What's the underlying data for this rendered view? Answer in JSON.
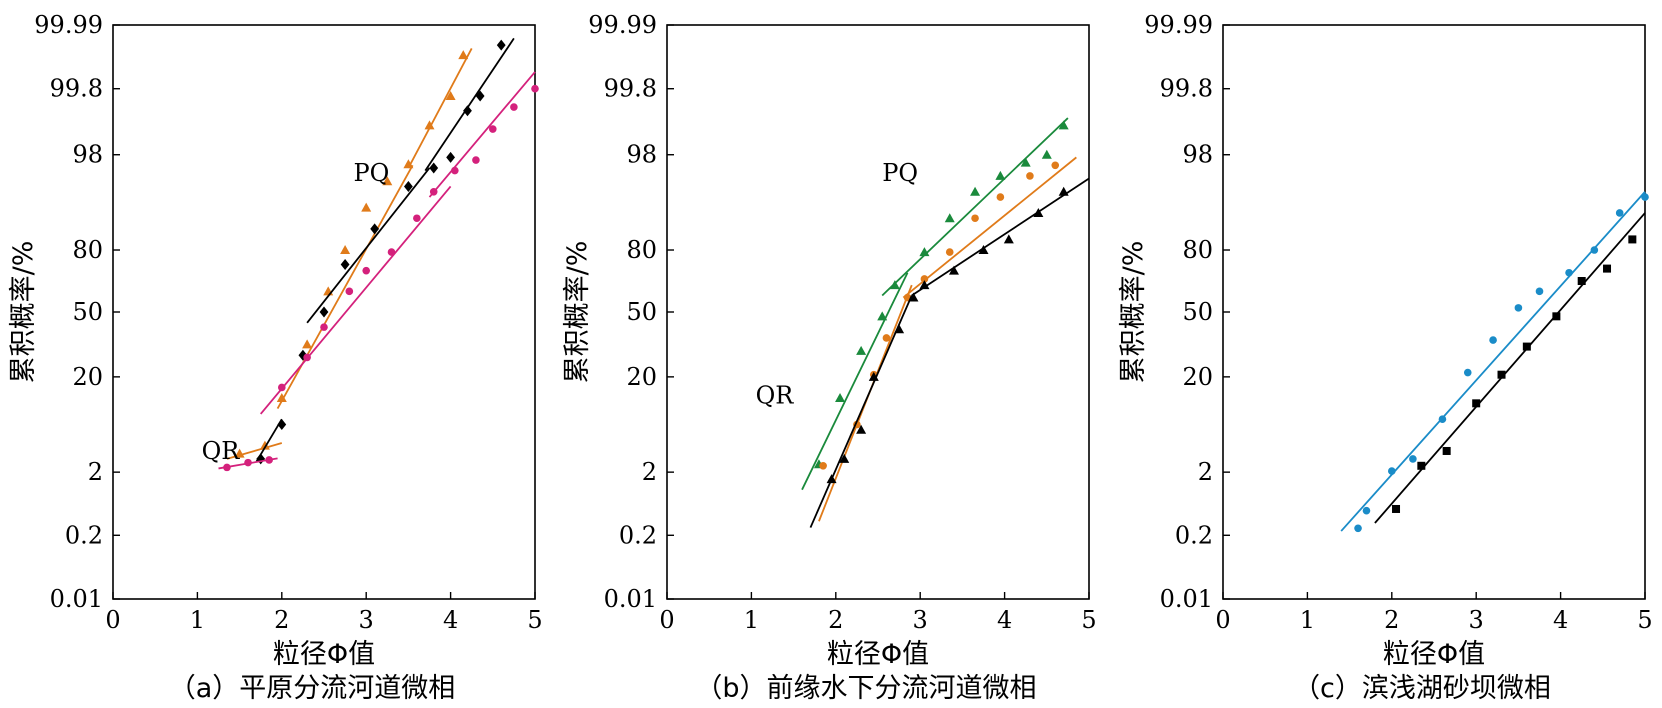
{
  "chart_data": [
    {
      "type": "scatter",
      "subplot": "a",
      "caption": "（a）平原分流河道微相",
      "xlabel": "粒径Φ值",
      "ylabel": "累积概率/%",
      "xlim": [
        0,
        5
      ],
      "xticks": [
        "0",
        "1",
        "2",
        "3",
        "4",
        "5"
      ],
      "yscale": "probability",
      "yticks": [
        "0.01",
        "0.2",
        "2",
        "20",
        "50",
        "80",
        "98",
        "99.8",
        "99.99"
      ],
      "annotations": [
        {
          "text": "PQ",
          "x": 2.85,
          "y": 93
        },
        {
          "text": "QR",
          "x": 1.05,
          "y": 4.5
        }
      ],
      "series": [
        {
          "color": "#E07B1A",
          "marker": "triangle",
          "points": [
            [
              1.5,
              5.5
            ],
            [
              1.8,
              7
            ],
            [
              2.0,
              16
            ],
            [
              2.3,
              35
            ],
            [
              2.55,
              60
            ],
            [
              2.75,
              80
            ],
            [
              3.0,
              88
            ],
            [
              3.25,
              93
            ],
            [
              3.5,
              96.2
            ],
            [
              3.75,
              98.8
            ],
            [
              4.0,
              99.6
            ],
            [
              4.15,
              99.9
            ]
          ],
          "lines": [
            [
              [
                1.35,
                4.5
              ],
              [
                2.0,
                7.5
              ]
            ],
            [
              [
                1.95,
                14
              ],
              [
                3.55,
                96
              ]
            ],
            [
              [
                3.5,
                95.5
              ],
              [
                4.25,
                99.92
              ]
            ]
          ]
        },
        {
          "color": "#000000",
          "marker": "diamond",
          "points": [
            [
              1.75,
              4.5
            ],
            [
              2.0,
              11
            ],
            [
              2.25,
              30
            ],
            [
              2.5,
              50
            ],
            [
              2.75,
              73
            ],
            [
              3.1,
              84
            ],
            [
              3.5,
              92
            ],
            [
              3.8,
              95.5
            ],
            [
              4.0,
              97.5
            ],
            [
              4.2,
              99.2
            ],
            [
              4.35,
              99.6
            ],
            [
              4.6,
              99.93
            ]
          ],
          "lines": [
            [
              [
                1.7,
                4
              ],
              [
                2.0,
                12
              ]
            ],
            [
              [
                2.3,
                45
              ],
              [
                3.75,
                95.5
              ]
            ],
            [
              [
                3.7,
                95
              ],
              [
                4.75,
                99.95
              ]
            ]
          ]
        },
        {
          "color": "#D4217C",
          "marker": "circle",
          "points": [
            [
              1.35,
              2.9
            ],
            [
              1.6,
              3.8
            ],
            [
              1.85,
              4.3
            ],
            [
              2.0,
              18
            ],
            [
              2.3,
              29
            ],
            [
              2.5,
              43
            ],
            [
              2.8,
              60
            ],
            [
              3.0,
              70
            ],
            [
              3.3,
              79
            ],
            [
              3.6,
              86
            ],
            [
              3.8,
              91
            ],
            [
              4.05,
              95
            ],
            [
              4.3,
              97
            ],
            [
              4.5,
              98.7
            ],
            [
              4.75,
              99.3
            ],
            [
              5.0,
              99.8
            ]
          ],
          "lines": [
            [
              [
                1.25,
                2.7
              ],
              [
                1.95,
                4.6
              ]
            ],
            [
              [
                1.75,
                13
              ],
              [
                4.0,
                92
              ]
            ],
            [
              [
                3.75,
                90
              ],
              [
                5.0,
                99.85
              ]
            ]
          ]
        }
      ]
    },
    {
      "type": "scatter",
      "subplot": "b",
      "caption": "（b）前缘水下分流河道微相",
      "xlabel": "粒径Φ值",
      "ylabel": "累积概率/%",
      "xlim": [
        0,
        5
      ],
      "xticks": [
        "0",
        "1",
        "2",
        "3",
        "4",
        "5"
      ],
      "yscale": "probability",
      "yticks": [
        "0.01",
        "0.2",
        "2",
        "20",
        "50",
        "80",
        "98",
        "99.8",
        "99.99"
      ],
      "annotations": [
        {
          "text": "PQ",
          "x": 2.55,
          "y": 93
        },
        {
          "text": "QR",
          "x": 1.05,
          "y": 15
        }
      ],
      "series": [
        {
          "color": "#1A8A3C",
          "marker": "triangle",
          "points": [
            [
              1.8,
              3.5
            ],
            [
              2.05,
              16
            ],
            [
              2.3,
              32
            ],
            [
              2.55,
              48
            ],
            [
              2.7,
              63
            ],
            [
              3.05,
              79
            ],
            [
              3.35,
              86
            ],
            [
              3.65,
              91
            ],
            [
              3.95,
              94
            ],
            [
              4.25,
              96.5
            ],
            [
              4.5,
              98
            ],
            [
              4.7,
              98.8
            ]
          ],
          "lines": [
            [
              [
                1.6,
                1.5
              ],
              [
                2.85,
                69
              ]
            ],
            [
              [
                2.55,
                58
              ],
              [
                4.75,
                99
              ]
            ]
          ]
        },
        {
          "color": "#E07B1A",
          "marker": "circle",
          "points": [
            [
              1.85,
              3.2
            ],
            [
              2.25,
              11
            ],
            [
              2.45,
              21
            ],
            [
              2.6,
              38
            ],
            [
              2.85,
              57
            ],
            [
              3.05,
              66
            ],
            [
              3.35,
              79
            ],
            [
              3.65,
              86
            ],
            [
              3.95,
              90
            ],
            [
              4.3,
              94
            ],
            [
              4.6,
              96
            ]
          ],
          "lines": [
            [
              [
                1.8,
                0.6
              ],
              [
                2.9,
                63
              ]
            ],
            [
              [
                2.8,
                57
              ],
              [
                4.85,
                97.5
              ]
            ]
          ]
        },
        {
          "color": "#000000",
          "marker": "triangle",
          "points": [
            [
              1.95,
              1.8
            ],
            [
              2.1,
              4.5
            ],
            [
              2.3,
              10
            ],
            [
              2.45,
              20
            ],
            [
              2.75,
              42
            ],
            [
              2.92,
              57
            ],
            [
              3.05,
              63
            ],
            [
              3.4,
              70
            ],
            [
              3.75,
              80
            ],
            [
              4.05,
              82
            ],
            [
              4.4,
              87
            ],
            [
              4.7,
              91
            ]
          ],
          "lines": [
            [
              [
                1.7,
                0.42
              ],
              [
                2.9,
                58
              ]
            ],
            [
              [
                2.9,
                58
              ],
              [
                5.0,
                93.5
              ]
            ]
          ]
        }
      ]
    },
    {
      "type": "scatter",
      "subplot": "c",
      "caption": "（c）滨浅湖砂坝微相",
      "xlabel": "粒径Φ值",
      "ylabel": "累积概率/%",
      "xlim": [
        0,
        5
      ],
      "xticks": [
        "0",
        "1",
        "2",
        "3",
        "4",
        "5"
      ],
      "yscale": "probability",
      "yticks": [
        "0.01",
        "0.2",
        "2",
        "20",
        "50",
        "80",
        "98",
        "99.8",
        "99.99"
      ],
      "annotations": [],
      "series": [
        {
          "color": "#1A8CC8",
          "marker": "circle",
          "points": [
            [
              1.6,
              0.4
            ],
            [
              1.7,
              0.9
            ],
            [
              2.0,
              2.2
            ],
            [
              2.25,
              4.5
            ],
            [
              2.6,
              12
            ],
            [
              2.9,
              22
            ],
            [
              3.2,
              37
            ],
            [
              3.5,
              52
            ],
            [
              3.75,
              60
            ],
            [
              4.1,
              69
            ],
            [
              4.4,
              80
            ],
            [
              4.7,
              87
            ],
            [
              5.0,
              90
            ]
          ],
          "lines": [
            [
              [
                1.4,
                0.32
              ],
              [
                5.0,
                91
              ]
            ]
          ]
        },
        {
          "color": "#000000",
          "marker": "square",
          "points": [
            [
              2.05,
              0.95
            ],
            [
              2.35,
              3.2
            ],
            [
              2.65,
              6
            ],
            [
              3.0,
              15
            ],
            [
              3.3,
              21
            ],
            [
              3.6,
              34
            ],
            [
              3.95,
              48
            ],
            [
              4.25,
              65
            ],
            [
              4.55,
              71
            ],
            [
              4.85,
              82
            ]
          ],
          "lines": [
            [
              [
                1.8,
                0.55
              ],
              [
                5.0,
                87
              ]
            ]
          ]
        }
      ]
    }
  ]
}
